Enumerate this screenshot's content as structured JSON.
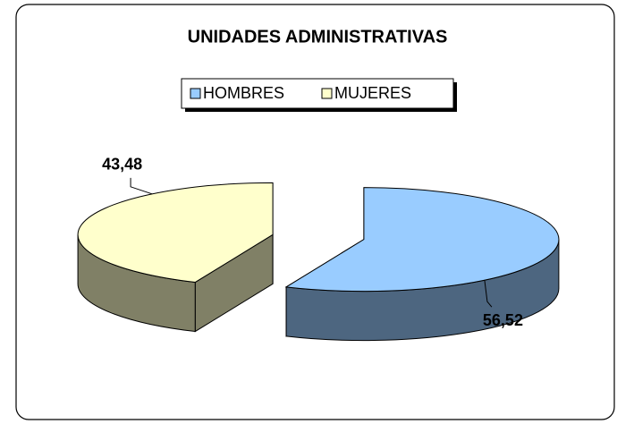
{
  "chart_data": {
    "type": "pie3d",
    "title": "UNIDADES ADMINISTRATIVAS",
    "categories": [
      "HOMBRES",
      "MUJERES"
    ],
    "values": [
      56.52,
      43.48
    ],
    "value_labels": [
      "56,52",
      "43,48"
    ],
    "colors": [
      "#99ccff",
      "#ffffcc"
    ],
    "legend": "top"
  }
}
